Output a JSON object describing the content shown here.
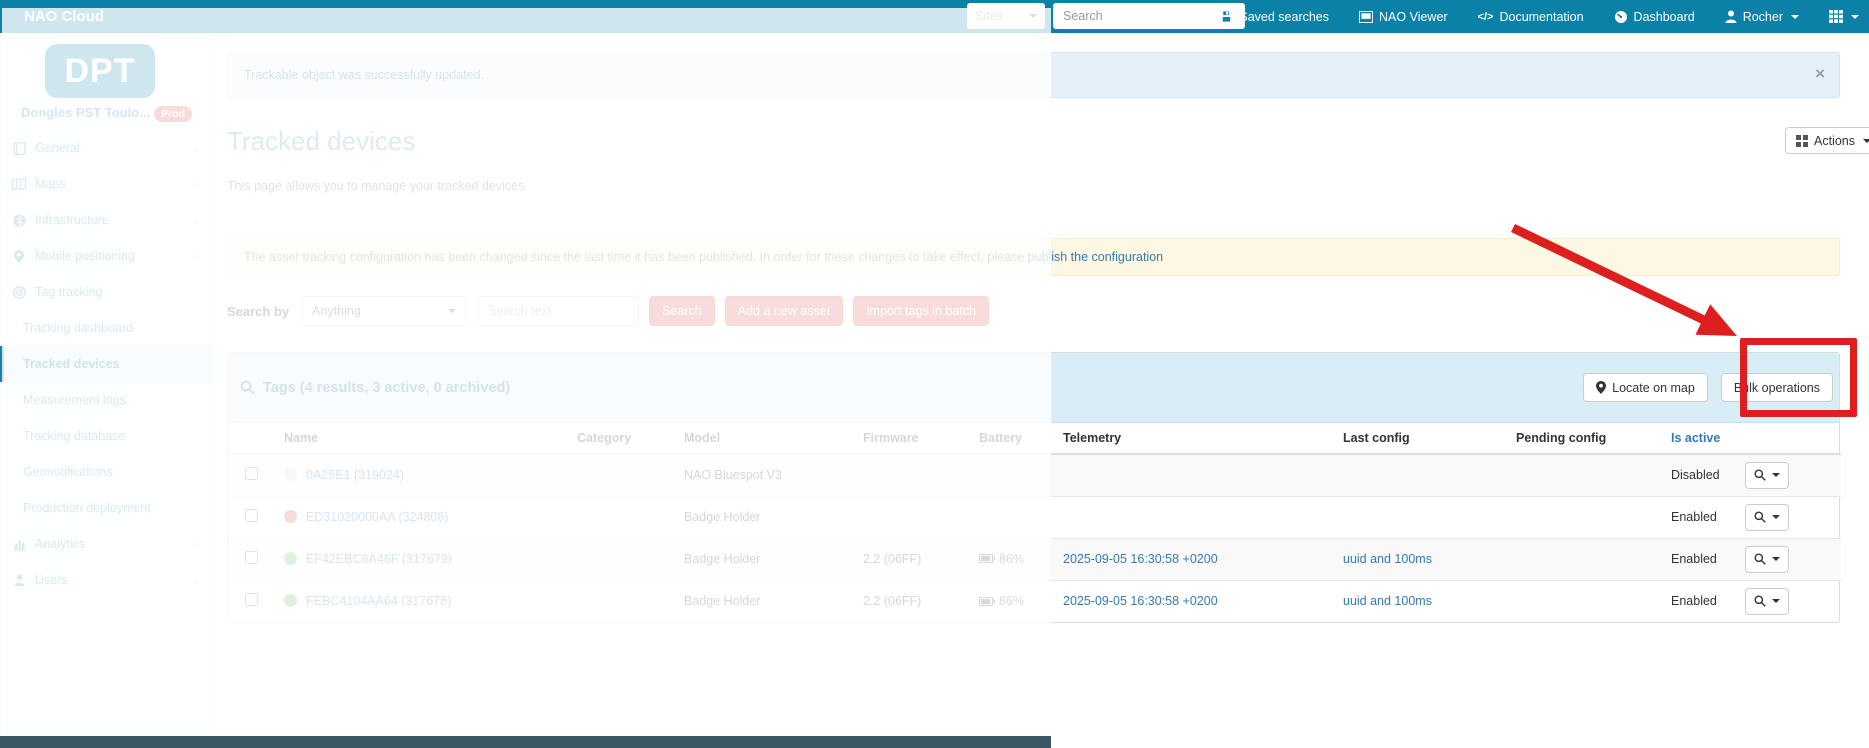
{
  "colors": {
    "accent": "#0b81a8",
    "link": "#337ab7",
    "danger": "#d9534f",
    "annotation": "#dd1f1f",
    "dot_green": "#5cb85c",
    "dot_red": "#d9534f",
    "dot_gray": "#cfd6d9",
    "panel_head": "#d9edf7",
    "warning_bg": "#fcf8e3",
    "footer": "#3b5864"
  },
  "topbar": {
    "brand": "NAO Cloud",
    "sites_placeholder": "Sites",
    "search_placeholder": "Search",
    "items": [
      {
        "label": "Saved searches",
        "icon": "floppy-icon"
      },
      {
        "label": "NAO Viewer",
        "icon": "viewer-icon"
      },
      {
        "label": "Documentation",
        "icon": "code-icon"
      },
      {
        "label": "Dashboard",
        "icon": "dashboard-icon"
      }
    ],
    "user": {
      "label": "Rocher",
      "icon": "user-icon"
    }
  },
  "sidebar": {
    "logo_text": "DPT",
    "org_name": "Dongles PST Toulo...",
    "org_badge": "Prod",
    "items": [
      {
        "label": "General",
        "icon": "book",
        "type": "section",
        "chevron": true
      },
      {
        "label": "Maps",
        "icon": "map",
        "type": "section",
        "chevron": true
      },
      {
        "label": "Infrastructure",
        "icon": "bluetooth",
        "type": "section",
        "chevron": true
      },
      {
        "label": "Mobile positioning",
        "icon": "marker",
        "type": "section",
        "chevron": true
      },
      {
        "label": "Tag tracking",
        "icon": "target",
        "type": "section",
        "chevron": false
      },
      {
        "label": "Tracking dashboard",
        "type": "sub",
        "active": false
      },
      {
        "label": "Tracked devices",
        "type": "sub",
        "active": true
      },
      {
        "label": "Measurement logs",
        "type": "sub",
        "active": false
      },
      {
        "label": "Tracking database",
        "type": "sub",
        "active": false
      },
      {
        "label": "Geonotifications",
        "type": "sub",
        "active": false
      },
      {
        "label": "Production deployment",
        "type": "sub",
        "active": false
      },
      {
        "label": "Analytics",
        "icon": "chart",
        "type": "section",
        "chevron": true
      },
      {
        "label": "Users",
        "icon": "user",
        "type": "section",
        "chevron": true
      }
    ]
  },
  "alert": {
    "message": "Trackable object was successfully updated.",
    "close": "×"
  },
  "page": {
    "title": "Tracked devices",
    "subtitle": "This page allows you to manage your tracked devices.",
    "actions_label": "Actions"
  },
  "warning": {
    "message": "The asset tracking configuration has been changed since the last time it has been published. In order for these changes to take effect, please ",
    "link_label": "publish the configuration"
  },
  "search": {
    "label": "Search by",
    "filter_value": "Anything",
    "input_placeholder": "Search text",
    "search_button": "Search",
    "add_button": "Add a new asset",
    "import_button": "Import tags in batch"
  },
  "panel": {
    "title": "Tags (4 results, 3 active, 0 archived)",
    "locate_button": "Locate on map",
    "bulk_button": "Bulk operations"
  },
  "table": {
    "headers": [
      "Name",
      "Category",
      "Model",
      "Firmware",
      "Battery",
      "Telemetry",
      "Last config",
      "Pending config",
      "Is active"
    ],
    "sorted_header": "Is active",
    "rows": [
      {
        "status": "gray",
        "name": "0A25E1 (319024)",
        "category": "",
        "model": "NAO Bluespot V3",
        "firmware": "",
        "battery": "",
        "telemetry": "",
        "last_config": "",
        "pending_config": "",
        "is_active": "Disabled"
      },
      {
        "status": "red",
        "name": "ED31020000AA (324808)",
        "category": "",
        "model": "Badge Holder",
        "firmware": "",
        "battery": "",
        "telemetry": "",
        "last_config": "",
        "pending_config": "",
        "is_active": "Enabled"
      },
      {
        "status": "green",
        "name": "EF42EBC6A46F (317679)",
        "category": "",
        "model": "Badge Holder",
        "firmware": "2.2 (06FF)",
        "battery": "86%",
        "telemetry": "2025-09-05 16:30:58 +0200",
        "last_config": "uuid and 100ms",
        "pending_config": "",
        "is_active": "Enabled"
      },
      {
        "status": "green",
        "name": "FEBC4104AA64 (317678)",
        "category": "",
        "model": "Badge Holder",
        "firmware": "2.2 (06FF)",
        "battery": "86%",
        "telemetry": "2025-09-05 16:30:58 +0200",
        "last_config": "uuid and 100ms",
        "pending_config": "",
        "is_active": "Enabled"
      }
    ]
  }
}
